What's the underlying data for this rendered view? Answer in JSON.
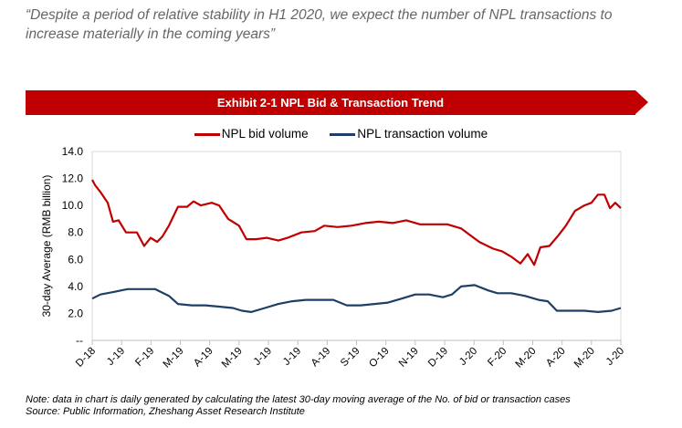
{
  "quote": "“Despite a period of relative stability in H1 2020, we expect the number of NPL transactions to increase materially in the coming years”",
  "banner": "Exhibit 2-1 NPL Bid & Transaction Trend",
  "note": "Note: data in chart is daily generated by calculating the latest 30-day moving average of the No. of bid or transaction cases",
  "source": "Source: Public Information, Zheshang Asset Research Institute",
  "chart_data": {
    "type": "line",
    "title": "Exhibit 2-1 NPL Bid & Transaction Trend",
    "ylabel": "30-day Average (RMB billion)",
    "xlabel": "",
    "ylim": [
      0,
      14
    ],
    "yticks": [
      "--",
      "2.0",
      "4.0",
      "6.0",
      "8.0",
      "10.0",
      "12.0",
      "14.0"
    ],
    "xticks": [
      "D-18",
      "J-19",
      "F-19",
      "M-19",
      "A-19",
      "M-19",
      "J-19",
      "J-19",
      "A-19",
      "S-19",
      "O-19",
      "N-19",
      "D-19",
      "J-20",
      "F-20",
      "M-20",
      "A-20",
      "M-20",
      "J-20"
    ],
    "x_unit": "months since Dec 2018",
    "legend_position": "top",
    "series": [
      {
        "name": "NPL bid volume",
        "color": "#c00000",
        "x": [
          0,
          0.1,
          0.28,
          0.53,
          0.71,
          0.9,
          1.15,
          1.52,
          1.77,
          1.99,
          2.21,
          2.39,
          2.61,
          2.92,
          3.23,
          3.45,
          3.7,
          4.07,
          4.32,
          4.63,
          5.0,
          5.25,
          5.57,
          5.94,
          6.34,
          6.65,
          7.12,
          7.58,
          7.9,
          8.36,
          8.83,
          9.3,
          9.76,
          10.23,
          10.69,
          11.16,
          11.63,
          12.09,
          12.56,
          12.87,
          13.18,
          13.65,
          13.96,
          14.27,
          14.58,
          14.83,
          15.05,
          15.26,
          15.57,
          15.88,
          16.13,
          16.44,
          16.76,
          17.0,
          17.22,
          17.44,
          17.63,
          17.81,
          18
        ],
        "y": [
          11.9,
          11.5,
          11.0,
          10.2,
          8.8,
          8.9,
          8.0,
          8.0,
          7.0,
          7.6,
          7.3,
          7.7,
          8.5,
          9.9,
          9.9,
          10.3,
          10.0,
          10.2,
          10.0,
          9.0,
          8.5,
          7.5,
          7.5,
          7.6,
          7.4,
          7.6,
          8.0,
          8.1,
          8.5,
          8.4,
          8.5,
          8.7,
          8.8,
          8.7,
          8.9,
          8.6,
          8.6,
          8.6,
          8.3,
          7.8,
          7.3,
          6.8,
          6.6,
          6.2,
          5.7,
          6.4,
          5.6,
          6.9,
          7.0,
          7.8,
          8.5,
          9.6,
          10.0,
          10.2,
          10.8,
          10.8,
          9.8,
          10.2,
          9.8
        ]
      },
      {
        "name": "NPL transaction volume",
        "color": "#1f3f66",
        "x": [
          0,
          0.28,
          0.75,
          1.21,
          1.68,
          2.14,
          2.61,
          2.92,
          3.39,
          3.85,
          4.32,
          4.79,
          5.1,
          5.41,
          5.88,
          6.34,
          6.81,
          7.27,
          7.74,
          8.21,
          8.67,
          9.14,
          9.61,
          10.07,
          10.54,
          11.0,
          11.47,
          11.94,
          12.25,
          12.56,
          13.02,
          13.49,
          13.8,
          14.27,
          14.73,
          15.2,
          15.51,
          15.82,
          16.29,
          16.76,
          17.22,
          17.69,
          18
        ],
        "y": [
          3.1,
          3.4,
          3.6,
          3.8,
          3.8,
          3.8,
          3.3,
          2.7,
          2.6,
          2.6,
          2.5,
          2.4,
          2.2,
          2.1,
          2.4,
          2.7,
          2.9,
          3.0,
          3.0,
          3.0,
          2.6,
          2.6,
          2.7,
          2.8,
          3.1,
          3.4,
          3.4,
          3.2,
          3.4,
          4.0,
          4.1,
          3.7,
          3.5,
          3.5,
          3.3,
          3.0,
          2.9,
          2.2,
          2.2,
          2.2,
          2.1,
          2.2,
          2.4
        ]
      }
    ]
  }
}
